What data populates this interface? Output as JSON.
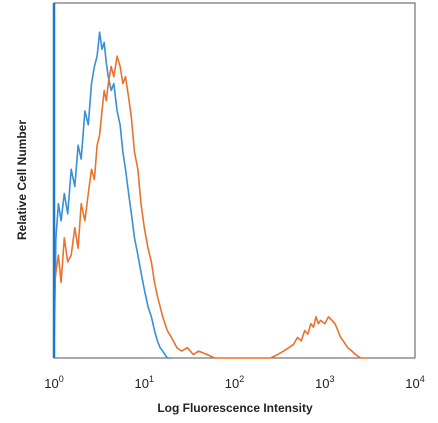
{
  "chart_data": {
    "type": "line",
    "xscale": "log",
    "xlim": [
      1,
      10000
    ],
    "ylim": [
      0,
      1
    ],
    "grid": false,
    "legend": "none",
    "xlabel": "Log Fluorescence Intensity",
    "ylabel": "Relative Cell Number",
    "xticks": [
      {
        "value": 1,
        "base": "10",
        "exp": "0"
      },
      {
        "value": 10,
        "base": "10",
        "exp": "1"
      },
      {
        "value": 100,
        "base": "10",
        "exp": "2"
      },
      {
        "value": 1000,
        "base": "10",
        "exp": "3"
      },
      {
        "value": 10000,
        "base": "10",
        "exp": "4"
      }
    ],
    "series": [
      {
        "color": "#3a8fd6",
        "x": [
          1,
          1.05,
          1.12,
          1.2,
          1.3,
          1.42,
          1.55,
          1.7,
          1.85,
          2.0,
          2.2,
          2.4,
          2.6,
          2.8,
          3.0,
          3.2,
          3.4,
          3.6,
          3.8,
          4.0,
          4.3,
          4.6,
          5.0,
          5.4,
          5.8,
          6.2,
          6.7,
          7.2,
          7.8,
          8.5,
          9.2,
          10,
          11,
          12,
          13,
          14,
          15,
          16,
          17,
          18,
          20
        ],
        "y": [
          0.02,
          0.35,
          0.45,
          0.4,
          0.48,
          0.42,
          0.55,
          0.5,
          0.62,
          0.58,
          0.72,
          0.68,
          0.8,
          0.85,
          0.88,
          0.95,
          0.9,
          0.92,
          0.86,
          0.82,
          0.78,
          0.8,
          0.72,
          0.68,
          0.6,
          0.55,
          0.48,
          0.42,
          0.35,
          0.3,
          0.25,
          0.2,
          0.15,
          0.12,
          0.08,
          0.05,
          0.03,
          0.02,
          0.01,
          0.0,
          0.0
        ]
      },
      {
        "color": "#e8732e",
        "x": [
          1,
          1.05,
          1.12,
          1.2,
          1.3,
          1.42,
          1.55,
          1.7,
          1.85,
          2.0,
          2.2,
          2.4,
          2.6,
          2.8,
          3.0,
          3.2,
          3.4,
          3.6,
          3.8,
          4.0,
          4.3,
          4.6,
          5.0,
          5.4,
          5.8,
          6.2,
          6.7,
          7.2,
          7.8,
          8.5,
          9.2,
          10,
          11,
          12,
          13,
          14,
          15,
          16,
          17,
          18,
          20,
          23,
          26,
          30,
          35,
          40,
          50,
          60,
          80,
          100,
          150,
          200,
          250,
          300,
          350,
          400,
          450,
          500,
          550,
          600,
          650,
          700,
          750,
          800,
          850,
          900,
          1000,
          1100,
          1200,
          1300,
          1400,
          1500,
          1600,
          1800,
          2000,
          2200,
          2500,
          3000
        ],
        "y": [
          0.2,
          0.25,
          0.3,
          0.22,
          0.35,
          0.28,
          0.3,
          0.38,
          0.32,
          0.45,
          0.4,
          0.48,
          0.55,
          0.52,
          0.62,
          0.65,
          0.72,
          0.78,
          0.75,
          0.8,
          0.85,
          0.82,
          0.88,
          0.85,
          0.8,
          0.82,
          0.76,
          0.7,
          0.6,
          0.55,
          0.45,
          0.38,
          0.32,
          0.28,
          0.22,
          0.18,
          0.15,
          0.12,
          0.1,
          0.08,
          0.06,
          0.03,
          0.02,
          0.03,
          0.01,
          0.02,
          0.01,
          0.0,
          0.0,
          0.0,
          0.0,
          0.0,
          0.0,
          0.01,
          0.02,
          0.03,
          0.04,
          0.06,
          0.05,
          0.08,
          0.07,
          0.1,
          0.09,
          0.12,
          0.1,
          0.11,
          0.1,
          0.12,
          0.11,
          0.1,
          0.08,
          0.06,
          0.05,
          0.03,
          0.02,
          0.01,
          0.0,
          0.0
        ]
      }
    ]
  }
}
